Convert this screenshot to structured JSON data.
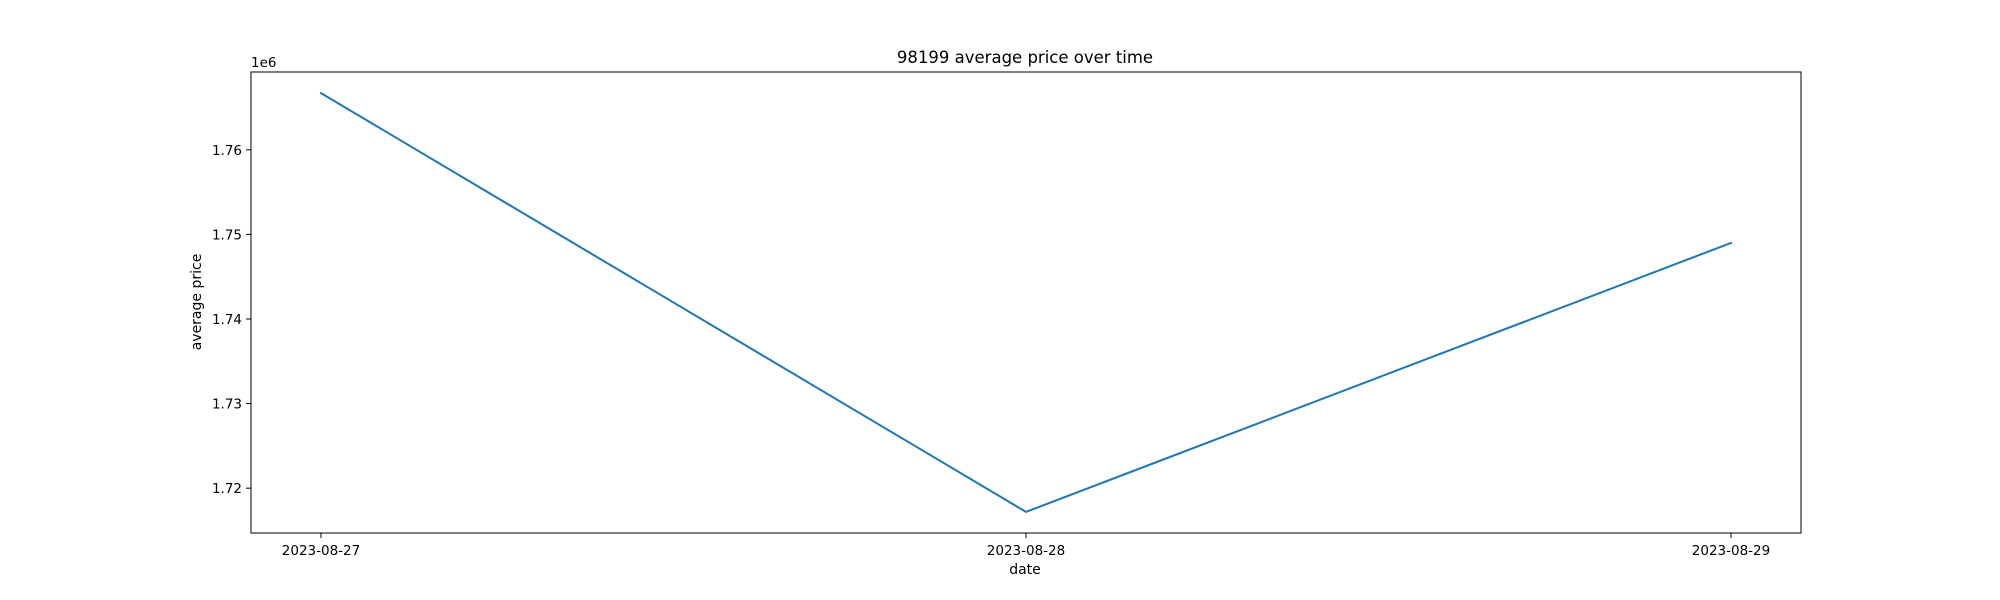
{
  "chart_data": {
    "type": "line",
    "title": "98199 average price over time",
    "xlabel": "date",
    "ylabel": "average price",
    "y_offset_label": "1e6",
    "x": [
      "2023-08-27",
      "2023-08-28",
      "2023-08-29"
    ],
    "x_tick_labels": [
      "2023-08-27",
      "2023-08-28",
      "2023-08-29"
    ],
    "series": [
      {
        "values": [
          1766700,
          1717200,
          1749000
        ],
        "color": "#1f77b4"
      }
    ],
    "y_ticks": [
      1.72,
      1.73,
      1.74,
      1.75,
      1.76
    ],
    "y_tick_labels": [
      "1.72",
      "1.73",
      "1.74",
      "1.75",
      "1.76"
    ],
    "y_scale": 1000000,
    "ylim": [
      1714700,
      1769200
    ],
    "grid": false,
    "legend": "none"
  }
}
